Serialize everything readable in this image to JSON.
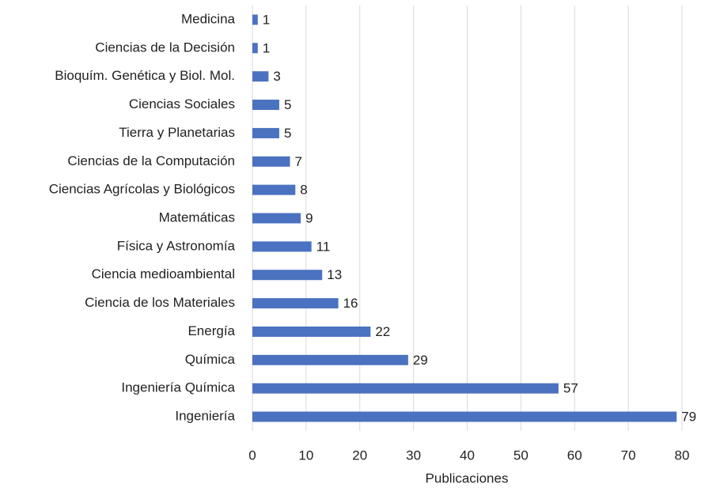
{
  "chart_data": {
    "type": "bar",
    "orientation": "horizontal",
    "categories": [
      "Medicina",
      "Ciencias de la Decisión",
      "Bioquím. Genética y Biol. Mol.",
      "Ciencias Sociales",
      "Tierra y Planetarias",
      "Ciencias de la Computación",
      "Ciencias Agrícolas y Biológicos",
      "Matemáticas",
      "Física y Astronomía",
      "Ciencia medioambiental",
      "Ciencia de los Materiales",
      "Energía",
      "Química",
      "Ingeniería Química",
      "Ingeniería"
    ],
    "values": [
      1,
      1,
      3,
      5,
      5,
      7,
      8,
      9,
      11,
      13,
      16,
      22,
      29,
      57,
      79
    ],
    "color": "#4a72c0",
    "x_label": "Publicaciones",
    "xlim": [
      0,
      80
    ],
    "xticks": [
      0,
      10,
      20,
      30,
      40,
      50,
      60,
      70,
      80
    ],
    "grid": true
  }
}
